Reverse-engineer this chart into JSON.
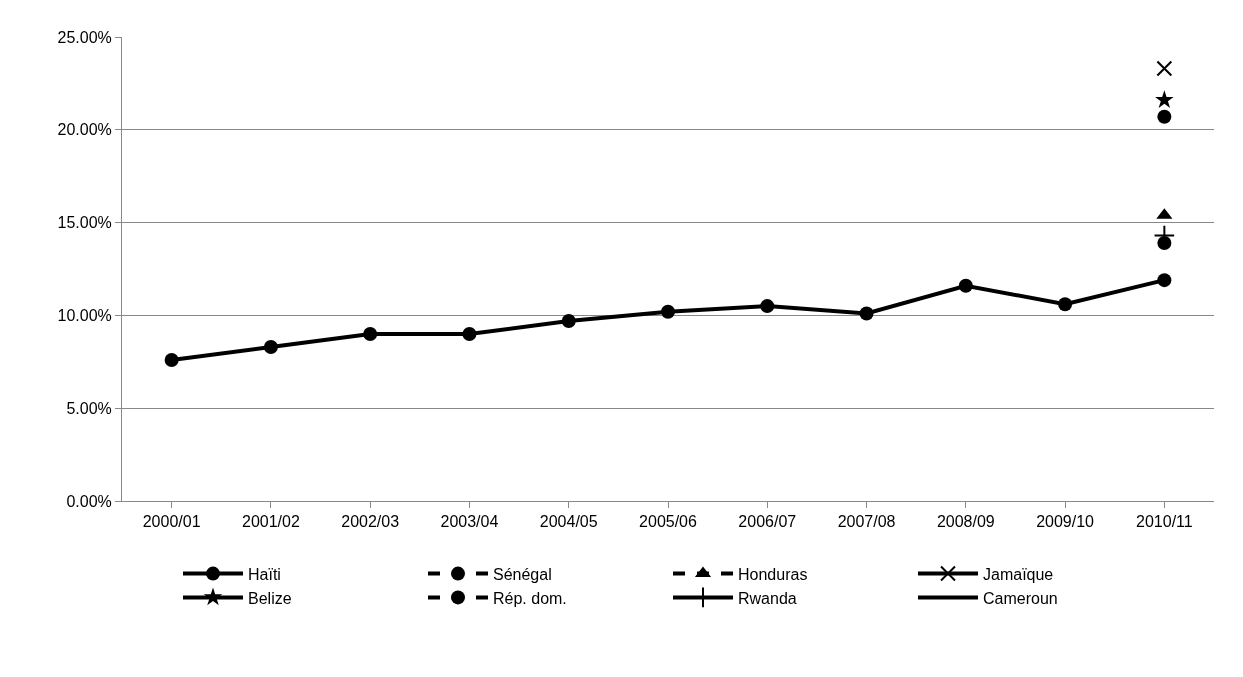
{
  "chart_data": {
    "type": "line",
    "categories": [
      "2000/01",
      "2001/02",
      "2002/03",
      "2003/04",
      "2004/05",
      "2005/06",
      "2006/07",
      "2007/08",
      "2008/09",
      "2009/10",
      "2010/11"
    ],
    "ylim": [
      0,
      25
    ],
    "yticks": [
      {
        "value": 0,
        "label": "0.00%"
      },
      {
        "value": 5,
        "label": "5.00%"
      },
      {
        "value": 10,
        "label": "10.00%"
      },
      {
        "value": 15,
        "label": "15.00%"
      },
      {
        "value": 20,
        "label": "20.00%"
      },
      {
        "value": 25,
        "label": "25.00%"
      }
    ],
    "grid": "y",
    "legend": "bottom",
    "series": [
      {
        "name": "Haïti",
        "color": "#000000",
        "marker": "circle",
        "line_style": "solid",
        "values": [
          7.6,
          8.3,
          9.0,
          9.0,
          9.7,
          10.2,
          10.5,
          10.1,
          11.6,
          10.6,
          11.9
        ]
      },
      {
        "name": "Sénégal",
        "color": "#000000",
        "marker": "circle",
        "line_style": "dashed",
        "values": [
          null,
          null,
          null,
          null,
          null,
          null,
          null,
          null,
          null,
          null,
          13.9
        ]
      },
      {
        "name": "Honduras",
        "color": "#000000",
        "marker": "triangle",
        "line_style": "dashed",
        "values": [
          null,
          null,
          null,
          null,
          null,
          null,
          null,
          null,
          null,
          null,
          15.4
        ]
      },
      {
        "name": "Jamaïque",
        "color": "#000000",
        "marker": "cross",
        "line_style": "solid",
        "values": [
          null,
          null,
          null,
          null,
          null,
          null,
          null,
          null,
          null,
          null,
          23.3
        ]
      },
      {
        "name": "Belize",
        "color": "#000000",
        "marker": "star",
        "line_style": "solid",
        "values": [
          null,
          null,
          null,
          null,
          null,
          null,
          null,
          null,
          null,
          null,
          21.6
        ]
      },
      {
        "name": "Rép. dom.",
        "color": "#000000",
        "marker": "circle",
        "line_style": "dashed",
        "values": [
          null,
          null,
          null,
          null,
          null,
          null,
          null,
          null,
          null,
          null,
          20.7
        ]
      },
      {
        "name": "Rwanda",
        "color": "#000000",
        "marker": "plus",
        "line_style": "solid",
        "values": [
          null,
          null,
          null,
          null,
          null,
          null,
          null,
          null,
          null,
          null,
          14.3
        ]
      },
      {
        "name": "Cameroun",
        "color": "#000000",
        "marker": "none",
        "line_style": "solid",
        "values": [
          null,
          null,
          null,
          null,
          null,
          null,
          null,
          null,
          null,
          null,
          null
        ]
      }
    ]
  }
}
